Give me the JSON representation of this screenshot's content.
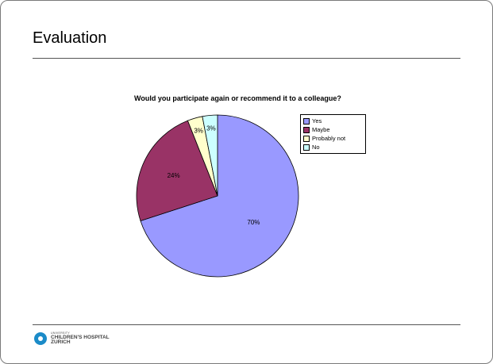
{
  "slide": {
    "title": "Evaluation"
  },
  "logo": {
    "line1": "UNIVERSITY",
    "line2": "CHILDREN'S HOSPITAL",
    "line3": "ZURICH"
  },
  "chart_data": {
    "type": "pie",
    "title": "Would you participate again or recommend it to a colleague?",
    "categories": [
      "Yes",
      "Maybe",
      "Probably not",
      "No"
    ],
    "values": [
      70,
      24,
      3,
      3
    ],
    "labels": [
      "70%",
      "24%",
      "3%",
      "3%"
    ],
    "colors": [
      "#9999ff",
      "#993366",
      "#ffffcc",
      "#ccffff"
    ],
    "legend_position": "right"
  }
}
